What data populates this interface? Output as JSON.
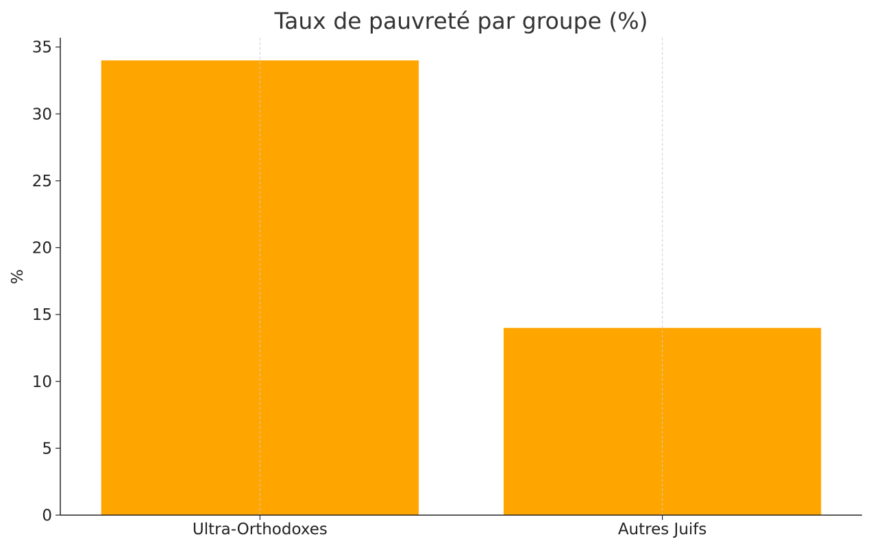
{
  "chart_data": {
    "type": "bar",
    "title": "Taux de pauvreté par groupe (%)",
    "xlabel": "",
    "ylabel": "%",
    "categories": [
      "Ultra-Orthodoxes",
      "Autres Juifs"
    ],
    "values": [
      34,
      14
    ],
    "ylim": [
      0,
      35.7
    ],
    "yticks": [
      0,
      5,
      10,
      15,
      20,
      25,
      30,
      35
    ],
    "grid": "vertical dashed at categories",
    "bar_color": "#FFA500",
    "axis_color": "#222222",
    "grid_color": "#cccccc"
  }
}
